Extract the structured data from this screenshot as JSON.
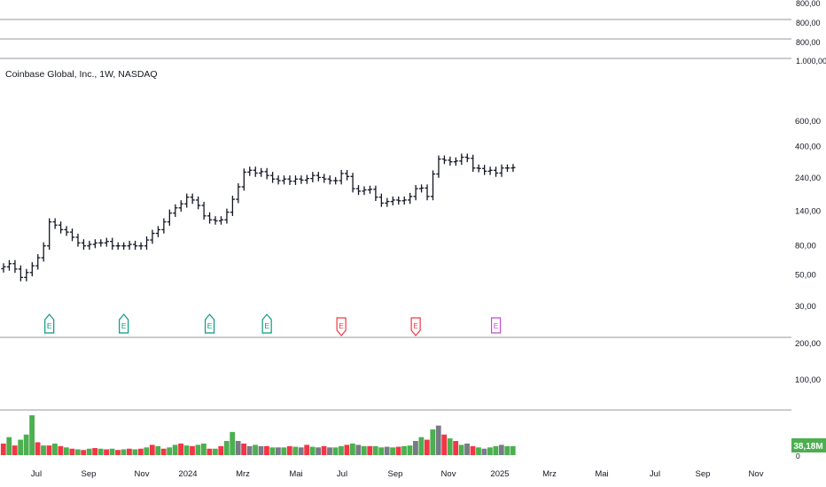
{
  "chart_data": {
    "type": "ohlc",
    "title": "Coinbase Global, Inc., 1W, NASDAQ",
    "timeframe": "1W",
    "exchange": "NASDAQ",
    "y_scale": "log",
    "price_ticks": [
      "600,00",
      "400,00",
      "240,00",
      "140,00",
      "80,00",
      "50,00",
      "30,00"
    ],
    "x_ticks": [
      "Jul",
      "Sep",
      "Nov",
      "2024",
      "Mrz",
      "Mai",
      "Jul",
      "Sep",
      "Nov",
      "2025",
      "Mrz",
      "Mai",
      "Jul",
      "Sep",
      "Nov"
    ],
    "top_pane_labels": [
      "800,00",
      "800,00",
      "800,00",
      "1.000,00"
    ],
    "mid_pane_ticks": [
      "200,00",
      "100,00"
    ],
    "volume_last_label": "38,18M",
    "volume_zero_label": "0",
    "earnings": [
      {
        "label": "E",
        "week": 8,
        "type": "positive"
      },
      {
        "label": "E",
        "week": 21,
        "type": "positive"
      },
      {
        "label": "E",
        "week": 36,
        "type": "positive"
      },
      {
        "label": "E",
        "week": 46,
        "type": "positive"
      },
      {
        "label": "E",
        "week": 59,
        "type": "negative"
      },
      {
        "label": "E",
        "week": 72,
        "type": "negative"
      },
      {
        "label": "E",
        "week": 86,
        "type": "upcoming"
      }
    ],
    "weekly_close": [
      57,
      60,
      55,
      48,
      52,
      58,
      66,
      80,
      118,
      112,
      104,
      100,
      92,
      84,
      80,
      82,
      84,
      84,
      86,
      80,
      80,
      80,
      82,
      80,
      80,
      88,
      98,
      104,
      118,
      136,
      148,
      158,
      176,
      168,
      154,
      130,
      122,
      120,
      122,
      138,
      170,
      208,
      264,
      272,
      260,
      266,
      250,
      236,
      230,
      236,
      228,
      236,
      232,
      238,
      250,
      242,
      236,
      230,
      230,
      258,
      246,
      202,
      194,
      198,
      200,
      176,
      160,
      164,
      168,
      166,
      168,
      178,
      202,
      204,
      178,
      256,
      326,
      320,
      312,
      316,
      336,
      330,
      282,
      280,
      268,
      272,
      260,
      282,
      282,
      284
    ],
    "weekly_volume": [
      18,
      28,
      15,
      24,
      32,
      62,
      20,
      15,
      15,
      18,
      14,
      12,
      10,
      9,
      8,
      10,
      11,
      10,
      9,
      10,
      8,
      9,
      10,
      9,
      10,
      12,
      16,
      14,
      10,
      12,
      16,
      18,
      15,
      14,
      16,
      18,
      10,
      10,
      14,
      22,
      36,
      22,
      18,
      14,
      16,
      14,
      14,
      12,
      12,
      12,
      14,
      13,
      12,
      16,
      13,
      12,
      14,
      12,
      12,
      14,
      16,
      18,
      16,
      14,
      14,
      14,
      12,
      13,
      12,
      13,
      14,
      15,
      22,
      28,
      24,
      40,
      46,
      32,
      26,
      22,
      16,
      18,
      14,
      12,
      10,
      12,
      14,
      16,
      14,
      14
    ],
    "weekly_volume_color": [
      "red",
      "green",
      "red",
      "green",
      "green",
      "green",
      "red",
      "green",
      "red",
      "green",
      "red",
      "green",
      "red",
      "green",
      "red",
      "green",
      "red",
      "green",
      "red",
      "green",
      "red",
      "green",
      "red",
      "green",
      "red",
      "green",
      "red",
      "green",
      "red",
      "green",
      "green",
      "red",
      "green",
      "red",
      "green",
      "green",
      "red",
      "green",
      "red",
      "green",
      "green",
      "gray",
      "red",
      "gray",
      "green",
      "gray",
      "red",
      "green",
      "gray",
      "green",
      "red",
      "green",
      "gray",
      "red",
      "green",
      "gray",
      "red",
      "gray",
      "green",
      "green",
      "red",
      "green",
      "gray",
      "green",
      "red",
      "green",
      "green",
      "gray",
      "green",
      "red",
      "green",
      "green",
      "gray",
      "green",
      "red",
      "green",
      "gray",
      "red",
      "green",
      "red",
      "green",
      "gray",
      "red",
      "green",
      "gray",
      "green",
      "green",
      "gray",
      "green",
      "green"
    ]
  }
}
